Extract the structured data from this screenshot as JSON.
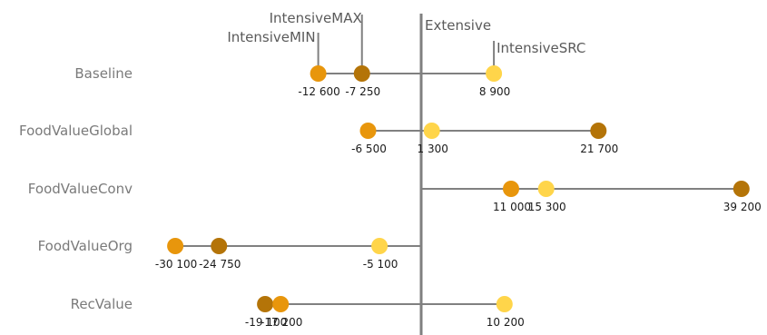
{
  "chart_data": {
    "type": "scatter",
    "reference_label": "Extensive",
    "reference_value": 0,
    "series": [
      {
        "name": "IntensiveMIN",
        "color": "#E8960C"
      },
      {
        "name": "IntensiveMAX",
        "color": "#B47408"
      },
      {
        "name": "IntensiveSRC",
        "color": "#FFD54A"
      }
    ],
    "categories": [
      {
        "name": "Baseline",
        "points": [
          {
            "series": "IntensiveMIN",
            "value": -12600,
            "label": "-12 600"
          },
          {
            "series": "IntensiveMAX",
            "value": -7250,
            "label": "-7 250"
          },
          {
            "series": "IntensiveSRC",
            "value": 8900,
            "label": "8 900"
          }
        ]
      },
      {
        "name": "FoodValueGlobal",
        "points": [
          {
            "series": "IntensiveMIN",
            "value": -6500,
            "label": "-6 500"
          },
          {
            "series": "IntensiveSRC",
            "value": 1300,
            "label": "1 300"
          },
          {
            "series": "IntensiveMAX",
            "value": 21700,
            "label": "21 700"
          }
        ]
      },
      {
        "name": "FoodValueConv",
        "points": [
          {
            "series": "IntensiveMIN",
            "value": 11000,
            "label": "11 000"
          },
          {
            "series": "IntensiveSRC",
            "value": 15300,
            "label": "15 300"
          },
          {
            "series": "IntensiveMAX",
            "value": 39200,
            "label": "39 200"
          }
        ]
      },
      {
        "name": "FoodValueOrg",
        "points": [
          {
            "series": "IntensiveMIN",
            "value": -30100,
            "label": "-30 100"
          },
          {
            "series": "IntensiveMAX",
            "value": -24750,
            "label": "-24 750"
          },
          {
            "series": "IntensiveSRC",
            "value": -5100,
            "label": "-5 100"
          }
        ]
      },
      {
        "name": "RecValue",
        "points": [
          {
            "series": "IntensiveMAX",
            "value": -19100,
            "label": "-19 100"
          },
          {
            "series": "IntensiveMIN",
            "value": -17200,
            "label": "-17 200"
          },
          {
            "series": "IntensiveSRC",
            "value": 10200,
            "label": "10 200"
          }
        ]
      }
    ],
    "line_color": "#808080"
  }
}
